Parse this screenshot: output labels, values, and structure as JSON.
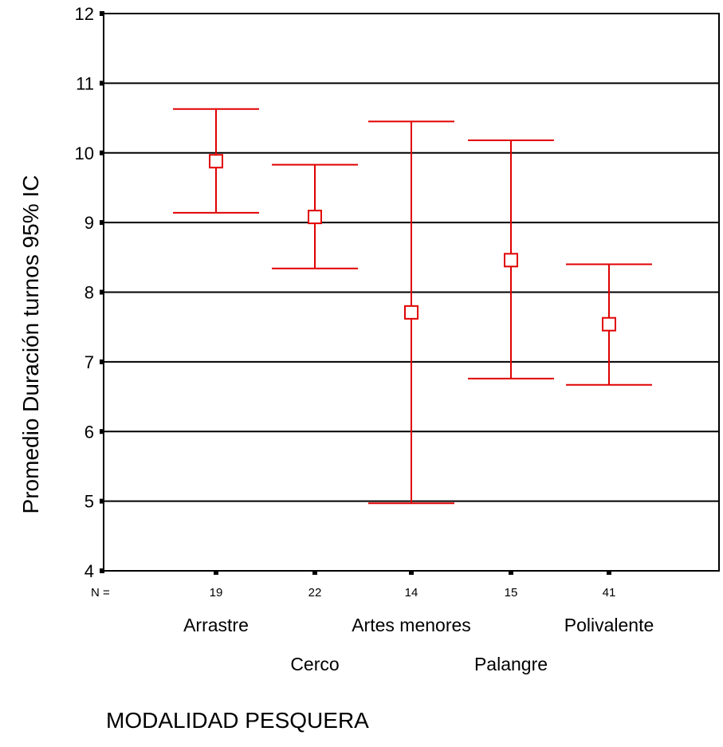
{
  "chart_data": {
    "type": "errorbar",
    "ylabel": "Promedio Duración turnos 95% IC",
    "xlabel": "MODALIDAD PESQUERA",
    "ylim": [
      4,
      12
    ],
    "yticks": [
      4,
      5,
      6,
      7,
      8,
      9,
      10,
      11,
      12
    ],
    "grid": true,
    "n_prefix": "N =",
    "color": "#e00000",
    "categories": [
      "Arrastre",
      "Cerco",
      "Artes menores",
      "Palangre",
      "Polivalente"
    ],
    "n": [
      "19",
      "22",
      "14",
      "15",
      "41"
    ],
    "means": [
      9.88,
      9.08,
      7.71,
      8.46,
      7.54
    ],
    "lower": [
      9.14,
      8.34,
      4.97,
      6.76,
      6.67
    ],
    "upper": [
      10.63,
      9.83,
      10.45,
      10.18,
      8.4
    ]
  }
}
